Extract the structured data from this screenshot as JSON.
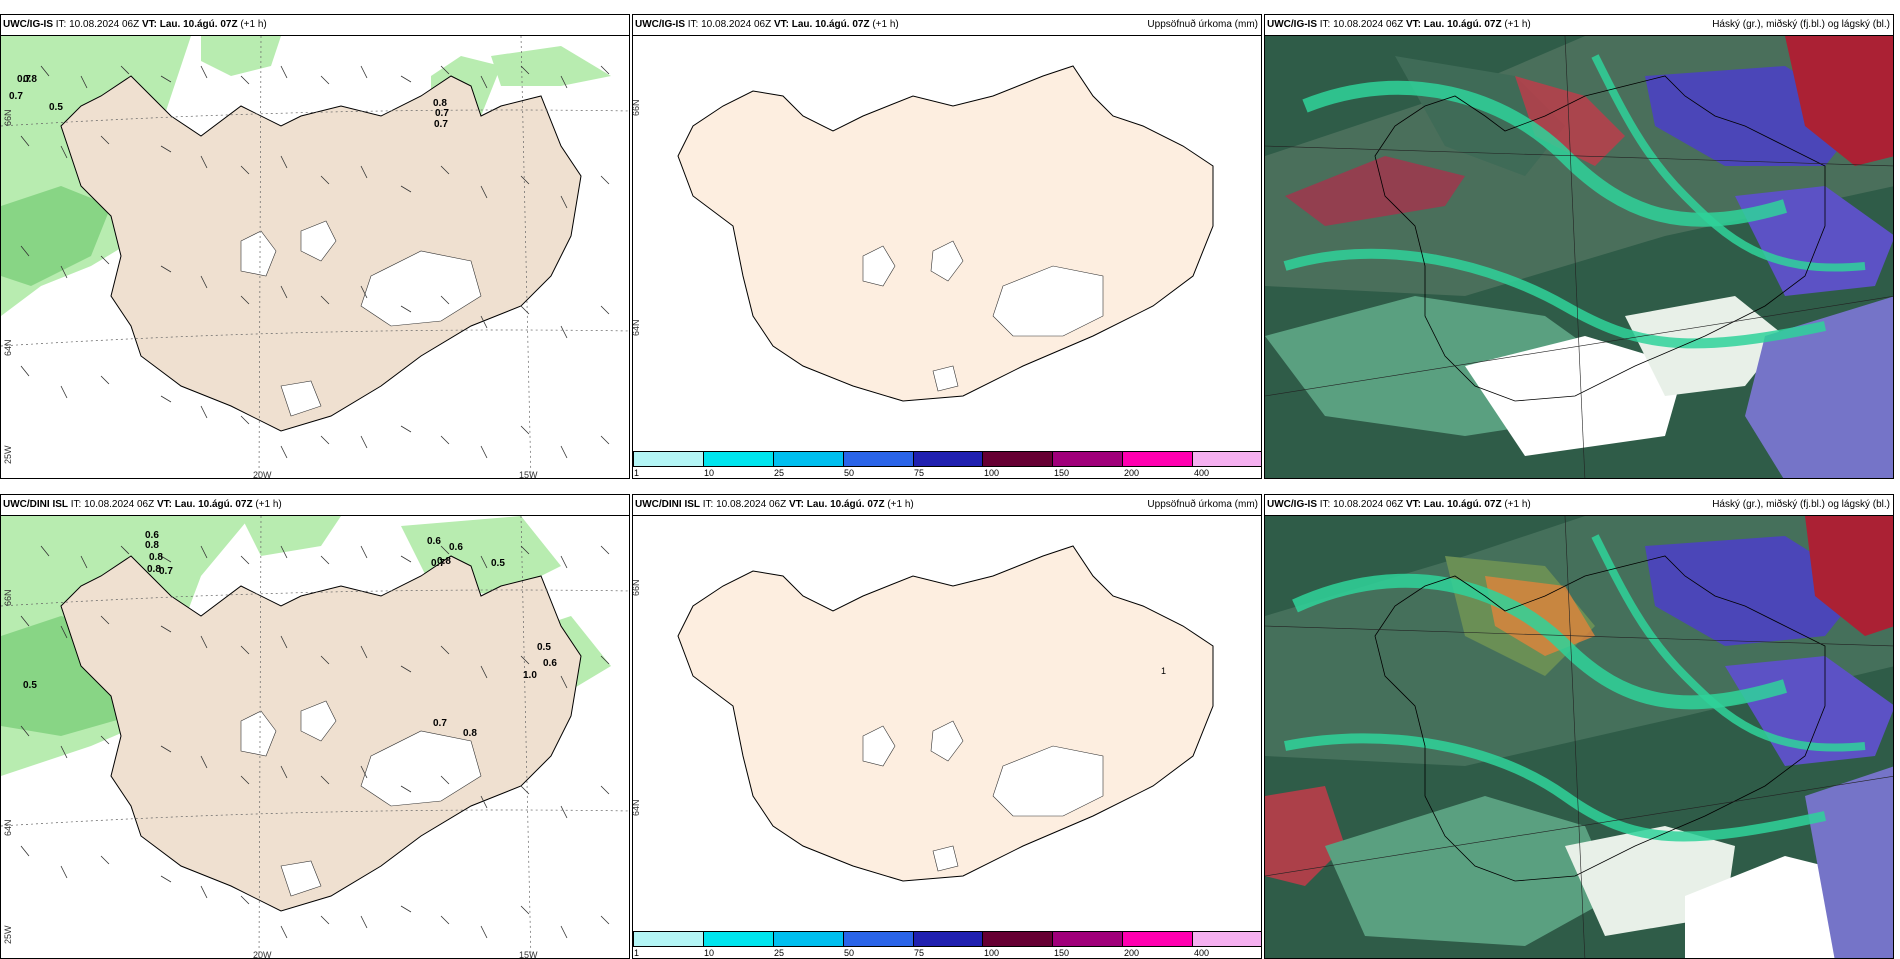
{
  "rows": [
    {
      "model": "UWC/IG-IS",
      "it_label": "IT:",
      "it": "10.08.2024 06Z",
      "vt_label": "VT:",
      "vt": "Lau. 10.ágú. 07Z",
      "lead": "(+1 h)",
      "wind_values": [
        "0.8",
        "0.7",
        "0.7",
        "0.5",
        "0.8",
        "0.7",
        "0.7"
      ],
      "lat_labels": [
        "66N",
        "64N"
      ],
      "lon_labels": [
        "25W",
        "20W",
        "15W"
      ]
    },
    {
      "model": "UWC/DINI ISL",
      "it_label": "IT:",
      "it": "10.08.2024 06Z",
      "vt_label": "VT:",
      "vt": "Lau. 10.ágú. 07Z",
      "lead": "(+1 h)",
      "wind_values": [
        "0.6",
        "0.8",
        "0.8",
        "0.8",
        "0.7",
        "0.6",
        "0.6",
        "0.7",
        "0.8",
        "0.5",
        "0.5",
        "0.6",
        "1.0",
        "0.5",
        "0.7",
        "0.8"
      ],
      "lat_labels": [
        "66N",
        "64N"
      ],
      "lon_labels": [
        "25W",
        "20W",
        "15W"
      ]
    }
  ],
  "precip_title": "Uppsöfnuð úrkoma (mm)",
  "cloud_title": "Háský (gr.), miðský (fj.bl.) og lágský (bl.)",
  "precip_small_label": "1",
  "colorbar": {
    "ticks": [
      "1",
      "10",
      "25",
      "50",
      "75",
      "100",
      "150",
      "200",
      "400"
    ],
    "colors": [
      "#b3f5f5",
      "#00e5ee",
      "#00bfef",
      "#2a64e8",
      "#2020b0",
      "#660033",
      "#a0007a",
      "#ff00b0",
      "#f5b0f0"
    ]
  },
  "colors": {
    "land": "#efe0d0",
    "land_precip": "#fdeee0",
    "green_light": "#b8ecb0",
    "green_mid": "#7ccf7a",
    "sea_dark": "#2f5c48"
  }
}
